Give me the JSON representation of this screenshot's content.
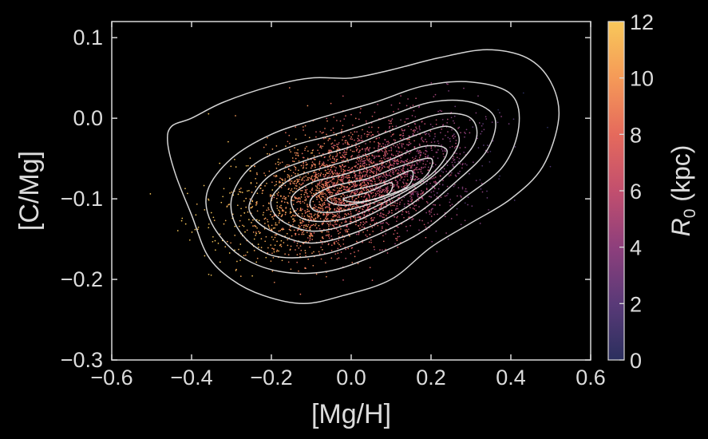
{
  "chart_data": {
    "type": "scatter",
    "title": "",
    "xlabel": "[Mg/H]",
    "ylabel": "[C/Mg]",
    "xlim": [
      -0.6,
      0.6
    ],
    "ylim": [
      -0.3,
      0.12
    ],
    "xticks": [
      -0.6,
      -0.4,
      -0.2,
      0.0,
      0.2,
      0.4,
      0.6
    ],
    "xtick_labels": [
      "−0.6",
      "−0.4",
      "−0.2",
      "0.0",
      "0.2",
      "0.4",
      "0.6"
    ],
    "yticks": [
      -0.3,
      -0.2,
      -0.1,
      0.0,
      0.1
    ],
    "ytick_labels": [
      "−0.3",
      "−0.2",
      "−0.1",
      "0.0",
      "0.1"
    ],
    "grid": false,
    "colorbar": {
      "label_main": "R",
      "label_sub": "0",
      "label_unit": " (kpc)",
      "range": [
        0,
        12
      ],
      "ticks": [
        0,
        2,
        4,
        6,
        8,
        10,
        12
      ],
      "tick_labels": [
        "0",
        "2",
        "4",
        "6",
        "8",
        "10",
        "12"
      ],
      "colormap": "inferno-like",
      "colors": [
        "#2b2f5e",
        "#5a3a78",
        "#8e3f7c",
        "#c24f6e",
        "#e56a5c",
        "#f59a58",
        "#f8c85a"
      ]
    },
    "colors": {
      "background": "#000000",
      "axis": "#d8d8d8",
      "contour": "#e6e6e6",
      "text": "#dcdcdc"
    },
    "density_center": {
      "x": 0.0,
      "y": -0.09
    },
    "contours": [
      [
        [
          -0.45,
          -0.01
        ],
        [
          -0.4,
          0.0
        ],
        [
          -0.32,
          0.02
        ],
        [
          -0.2,
          0.04
        ],
        [
          -0.1,
          0.05
        ],
        [
          0.0,
          0.05
        ],
        [
          0.1,
          0.06
        ],
        [
          0.22,
          0.075
        ],
        [
          0.34,
          0.085
        ],
        [
          0.44,
          0.075
        ],
        [
          0.5,
          0.045
        ],
        [
          0.52,
          0.0
        ],
        [
          0.48,
          -0.06
        ],
        [
          0.4,
          -0.1
        ],
        [
          0.3,
          -0.13
        ],
        [
          0.2,
          -0.16
        ],
        [
          0.1,
          -0.2
        ],
        [
          -0.02,
          -0.22
        ],
        [
          -0.12,
          -0.23
        ],
        [
          -0.22,
          -0.22
        ],
        [
          -0.3,
          -0.2
        ],
        [
          -0.36,
          -0.17
        ],
        [
          -0.4,
          -0.12
        ],
        [
          -0.44,
          -0.07
        ],
        [
          -0.46,
          -0.03
        ]
      ],
      [
        [
          -0.36,
          -0.09
        ],
        [
          -0.3,
          -0.05
        ],
        [
          -0.2,
          -0.02
        ],
        [
          -0.08,
          0.0
        ],
        [
          0.06,
          0.02
        ],
        [
          0.18,
          0.04
        ],
        [
          0.3,
          0.045
        ],
        [
          0.4,
          0.03
        ],
        [
          0.42,
          -0.01
        ],
        [
          0.38,
          -0.06
        ],
        [
          0.28,
          -0.1
        ],
        [
          0.18,
          -0.14
        ],
        [
          0.06,
          -0.17
        ],
        [
          -0.06,
          -0.19
        ],
        [
          -0.18,
          -0.19
        ],
        [
          -0.28,
          -0.17
        ],
        [
          -0.35,
          -0.13
        ]
      ],
      [
        [
          -0.3,
          -0.1
        ],
        [
          -0.25,
          -0.06
        ],
        [
          -0.15,
          -0.035
        ],
        [
          -0.04,
          -0.02
        ],
        [
          0.08,
          0.0
        ],
        [
          0.2,
          0.02
        ],
        [
          0.3,
          0.02
        ],
        [
          0.36,
          0.0
        ],
        [
          0.34,
          -0.04
        ],
        [
          0.26,
          -0.08
        ],
        [
          0.16,
          -0.12
        ],
        [
          0.04,
          -0.15
        ],
        [
          -0.08,
          -0.17
        ],
        [
          -0.2,
          -0.17
        ],
        [
          -0.28,
          -0.14
        ]
      ],
      [
        [
          -0.25,
          -0.1
        ],
        [
          -0.2,
          -0.07
        ],
        [
          -0.1,
          -0.05
        ],
        [
          0.0,
          -0.035
        ],
        [
          0.1,
          -0.015
        ],
        [
          0.22,
          0.005
        ],
        [
          0.3,
          0.0
        ],
        [
          0.31,
          -0.03
        ],
        [
          0.24,
          -0.07
        ],
        [
          0.14,
          -0.11
        ],
        [
          0.02,
          -0.14
        ],
        [
          -0.1,
          -0.155
        ],
        [
          -0.2,
          -0.14
        ],
        [
          -0.25,
          -0.12
        ]
      ],
      [
        [
          -0.2,
          -0.1
        ],
        [
          -0.15,
          -0.075
        ],
        [
          -0.06,
          -0.06
        ],
        [
          0.04,
          -0.045
        ],
        [
          0.14,
          -0.025
        ],
        [
          0.24,
          -0.01
        ],
        [
          0.27,
          -0.03
        ],
        [
          0.22,
          -0.065
        ],
        [
          0.12,
          -0.1
        ],
        [
          0.0,
          -0.13
        ],
        [
          -0.1,
          -0.14
        ],
        [
          -0.18,
          -0.125
        ]
      ],
      [
        [
          -0.15,
          -0.1
        ],
        [
          -0.1,
          -0.08
        ],
        [
          -0.02,
          -0.07
        ],
        [
          0.08,
          -0.055
        ],
        [
          0.18,
          -0.035
        ],
        [
          0.24,
          -0.04
        ],
        [
          0.2,
          -0.07
        ],
        [
          0.1,
          -0.1
        ],
        [
          -0.02,
          -0.125
        ],
        [
          -0.12,
          -0.125
        ]
      ],
      [
        [
          -0.1,
          -0.1
        ],
        [
          -0.05,
          -0.085
        ],
        [
          0.04,
          -0.075
        ],
        [
          0.12,
          -0.06
        ],
        [
          0.2,
          -0.05
        ],
        [
          0.18,
          -0.075
        ],
        [
          0.08,
          -0.1
        ],
        [
          -0.02,
          -0.115
        ],
        [
          -0.09,
          -0.115
        ]
      ],
      [
        [
          -0.06,
          -0.1
        ],
        [
          0.0,
          -0.09
        ],
        [
          0.08,
          -0.08
        ],
        [
          0.15,
          -0.065
        ],
        [
          0.14,
          -0.085
        ],
        [
          0.06,
          -0.1
        ],
        [
          -0.02,
          -0.108
        ]
      ],
      [
        [
          -0.02,
          -0.1
        ],
        [
          0.04,
          -0.092
        ],
        [
          0.1,
          -0.08
        ],
        [
          0.09,
          -0.095
        ],
        [
          0.02,
          -0.104
        ]
      ]
    ]
  }
}
